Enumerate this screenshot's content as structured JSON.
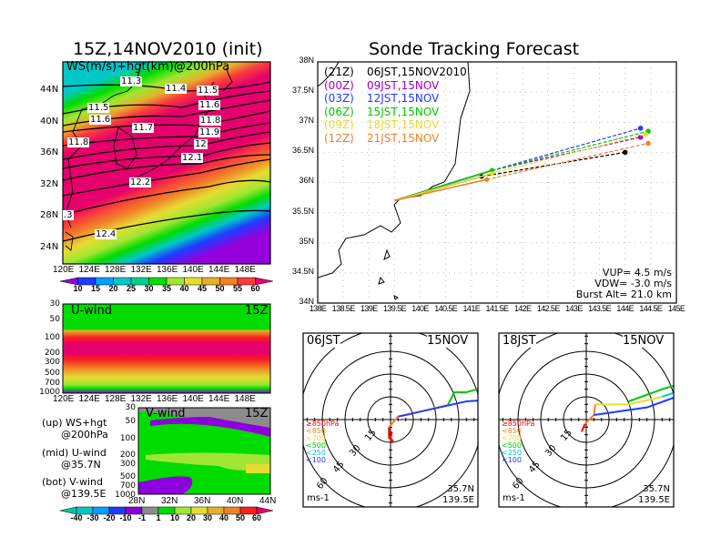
{
  "left": {
    "title": "15Z,14NOV2010 (init)",
    "map_label": "WS(m/s)+hgt(km)@200hPa",
    "lat_ticks": [
      "44N",
      "40N",
      "36N",
      "32N",
      "28N",
      "24N"
    ],
    "lon_ticks": [
      "120E",
      "124E",
      "128E",
      "132E",
      "136E",
      "140E",
      "144E",
      "148E"
    ],
    "contour_labels": [
      "11.3",
      "11.4",
      "11.5",
      "11.5",
      "11.6",
      "11.6",
      "11.7",
      "11.8",
      "11.8",
      "11.9",
      "12",
      "12.1",
      "12.2",
      ".3",
      "12.4"
    ],
    "ws_colorbar": {
      "labels": [
        "10",
        "15",
        "20",
        "25",
        "30",
        "35",
        "40",
        "45",
        "50",
        "55",
        "60"
      ],
      "colors": [
        "#9600dc",
        "#1e3cff",
        "#00a0ff",
        "#00c8c8",
        "#00d28c",
        "#00dc00",
        "#a0e632",
        "#e6dc32",
        "#e6af2d",
        "#f08228",
        "#fa3c3c",
        "#e6006e"
      ]
    },
    "uwind": {
      "title": "U-wind",
      "time": "15Z",
      "p_ticks": [
        "30",
        "50",
        "100",
        "200",
        "300",
        "500",
        "700",
        "1000"
      ],
      "lon_ticks": [
        "120E",
        "124E",
        "128E",
        "132E",
        "136E",
        "140E",
        "144E",
        "148E"
      ]
    },
    "vwind": {
      "title": "V-wind",
      "time": "15Z",
      "p_ticks": [
        "30",
        "50",
        "100",
        "200",
        "300",
        "500",
        "700",
        "1000"
      ],
      "lat_ticks": [
        "28N",
        "32N",
        "36N",
        "40N",
        "44N"
      ]
    },
    "v_colorbar": {
      "labels": [
        "-40",
        "-30",
        "-20",
        "-10",
        "-1",
        "1",
        "10",
        "20",
        "30",
        "40",
        "50",
        "60"
      ],
      "colors": [
        "#00c8a0",
        "#00c8c8",
        "#00a0ff",
        "#1e3cff",
        "#8c00dc",
        "#8c8c8c",
        "#00dc00",
        "#a0e632",
        "#e6dc32",
        "#e6af2d",
        "#f08228",
        "#fa1e1e",
        "#e6006e"
      ]
    },
    "legend": [
      {
        "a": "(up) WS+hgt",
        "b": "@200hPa"
      },
      {
        "a": "(mid) U-wind",
        "b": "@35.7N"
      },
      {
        "a": "(bot) V-wind",
        "b": "@139.5E"
      }
    ]
  },
  "right": {
    "title": "Sonde Tracking Forecast",
    "lat_ticks": [
      "38N",
      "37.5N",
      "37N",
      "36.5N",
      "36N",
      "35.5N",
      "35N",
      "34.5N",
      "34N"
    ],
    "lon_ticks": [
      "138E",
      "138.5E",
      "139E",
      "139.5E",
      "140E",
      "140.5E",
      "141E",
      "141.5E",
      "142E",
      "142.5E",
      "143E",
      "143.5E",
      "144E",
      "144.5E",
      "145E"
    ],
    "vup": "VUP= 4.5 m/s",
    "vdw": "VDW= -3.0 m/s",
    "burst": "Burst Alt= 21.0 km"
  },
  "chart_data": {
    "type": "line",
    "title": "Sonde Tracking Forecast",
    "xlim": [
      138,
      145
    ],
    "ylim": [
      34,
      38
    ],
    "series": [
      {
        "name": "(21Z)",
        "label": "06JST,15NOV2010",
        "color": "#000000",
        "mid": [
          141.2,
          36.1
        ],
        "end": [
          144.0,
          36.5
        ]
      },
      {
        "name": "(00Z)",
        "label": "09JST,15NOV",
        "color": "#a000c8",
        "mid": [
          141.4,
          36.2
        ],
        "end": [
          144.3,
          36.75
        ]
      },
      {
        "name": "(03Z)",
        "label": "12JST,15NOV",
        "color": "#1e3cff",
        "mid": [
          141.4,
          36.2
        ],
        "end": [
          144.3,
          36.9
        ]
      },
      {
        "name": "(06Z)",
        "label": "15JST,15NOV",
        "color": "#00c800",
        "mid": [
          141.4,
          36.2
        ],
        "end": [
          144.45,
          36.85
        ]
      },
      {
        "name": "(09Z)",
        "label": "18JST,15NOV",
        "color": "#e6dc32",
        "mid": [
          141.4,
          36.15
        ],
        "end": [
          144.4,
          36.8
        ]
      },
      {
        "name": "(12Z)",
        "label": "21JST,15NOV",
        "color": "#f08228",
        "mid": [
          141.3,
          36.05
        ],
        "end": [
          144.45,
          36.65
        ]
      }
    ],
    "start": [
      139.5,
      35.7
    ]
  },
  "hodographs": [
    {
      "time": "06JST",
      "date": "15NOV",
      "lat": "35.7N",
      "lon": "139.5E",
      "unit": "ms-1",
      "rings": [
        "15",
        "30",
        "45",
        "60"
      ],
      "legend": [
        "≥850hPa",
        "<850",
        "<700",
        "<500",
        "<250",
        "<100"
      ],
      "legend_colors": [
        "#ff0000",
        "#f08228",
        "#e6dc32",
        "#00c800",
        "#00c8c8",
        "#1e3cff"
      ],
      "segments": [
        {
          "c": "#ff0000",
          "pts": [
            [
              1,
              -8
            ],
            [
              0,
              -12
            ],
            [
              2,
              -15
            ],
            [
              -1,
              -12
            ],
            [
              -1,
              -5
            ]
          ]
        },
        {
          "c": "#f08228",
          "pts": [
            [
              -1,
              -5
            ],
            [
              5,
              2
            ],
            [
              15,
              4
            ]
          ]
        },
        {
          "c": "#e6dc32",
          "pts": [
            [
              15,
              4
            ],
            [
              38,
              10
            ]
          ]
        },
        {
          "c": "#00c800",
          "pts": [
            [
              38,
              10
            ],
            [
              42,
              18
            ],
            [
              50,
              18
            ],
            [
              75,
              25
            ]
          ]
        },
        {
          "c": "#00c8c8",
          "pts": [
            [
              64,
              13
            ],
            [
              75,
              25
            ]
          ]
        },
        {
          "c": "#1e3cff",
          "pts": [
            [
              5,
              2
            ],
            [
              50,
              12
            ],
            [
              64,
              13
            ]
          ]
        }
      ]
    },
    {
      "time": "18JST",
      "date": "15NOV",
      "lat": "35.7N",
      "lon": "139.5E",
      "unit": "ms-1",
      "rings": [
        "15",
        "30",
        "45",
        "60"
      ],
      "legend": [
        "≥850hPa",
        "<850",
        "<700",
        "<500",
        "<250",
        "<100"
      ],
      "legend_colors": [
        "#ff0000",
        "#f08228",
        "#e6dc32",
        "#00c800",
        "#00c8c8",
        "#1e3cff"
      ],
      "segments": [
        {
          "c": "#ff0000",
          "pts": [
            [
              -3,
              -8
            ],
            [
              -1,
              -3
            ]
          ]
        },
        {
          "c": "#f08228",
          "pts": [
            [
              -1,
              -3
            ],
            [
              5,
              3
            ],
            [
              6,
              10
            ]
          ]
        },
        {
          "c": "#e6dc32",
          "pts": [
            [
              6,
              10
            ],
            [
              28,
              10
            ],
            [
              50,
              15
            ]
          ]
        },
        {
          "c": "#00c800",
          "pts": [
            [
              28,
              12
            ],
            [
              50,
              20
            ],
            [
              70,
              26
            ]
          ]
        },
        {
          "c": "#00c8c8",
          "pts": [
            [
              50,
              15
            ],
            [
              70,
              22
            ]
          ]
        },
        {
          "c": "#1e3cff",
          "pts": [
            [
              5,
              3
            ],
            [
              40,
              8
            ],
            [
              62,
              16
            ]
          ]
        }
      ]
    }
  ]
}
